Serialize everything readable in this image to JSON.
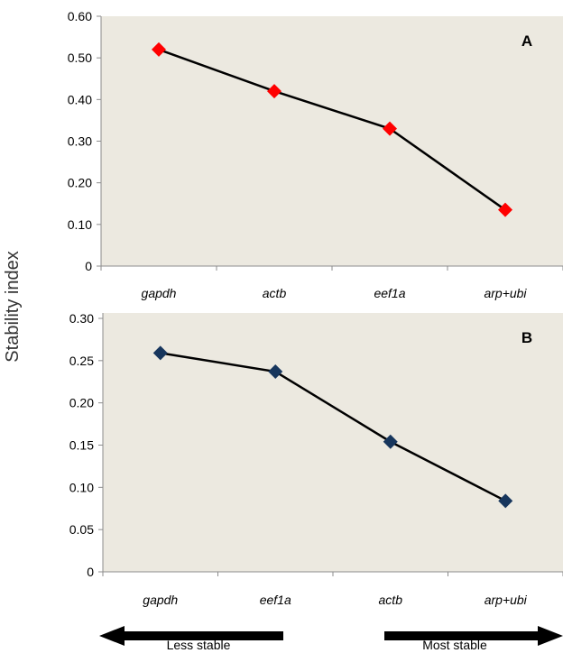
{
  "shared_ylabel": "Stability index",
  "colors": {
    "plot_background": "#ece9e0",
    "axis": "#8c8c8c",
    "line": "#000000"
  },
  "chart_data": [
    {
      "type": "line",
      "panel_label": "A",
      "categories": [
        "gapdh",
        "actb",
        "eef1a",
        "arp+ubi"
      ],
      "series": [
        {
          "values": [
            0.52,
            0.42,
            0.33,
            0.135
          ],
          "color": "#ff0000",
          "marker": "diamond"
        }
      ],
      "ylim": [
        0,
        0.6
      ],
      "yticks": [
        0,
        0.1,
        0.2,
        0.3,
        0.4,
        0.5,
        0.6
      ],
      "ytick_labels": [
        "0",
        "0.10",
        "0.20",
        "0.30",
        "0.40",
        "0.50",
        "0.60"
      ],
      "grid": false
    },
    {
      "type": "line",
      "panel_label": "B",
      "categories": [
        "gapdh",
        "eef1a",
        "actb",
        "arp+ubi"
      ],
      "series": [
        {
          "values": [
            0.259,
            0.237,
            0.154,
            0.084
          ],
          "color": "#17365d",
          "marker": "diamond"
        }
      ],
      "ylim": [
        0,
        0.3
      ],
      "yticks": [
        0,
        0.05,
        0.1,
        0.15,
        0.2,
        0.25,
        0.3
      ],
      "ytick_labels": [
        "0",
        "0.05",
        "0.10",
        "0.15",
        "0.20",
        "0.25",
        "0.30"
      ],
      "grid": false
    }
  ],
  "stability_arrows": {
    "left_label": "Less stable",
    "right_label": "Most stable"
  }
}
